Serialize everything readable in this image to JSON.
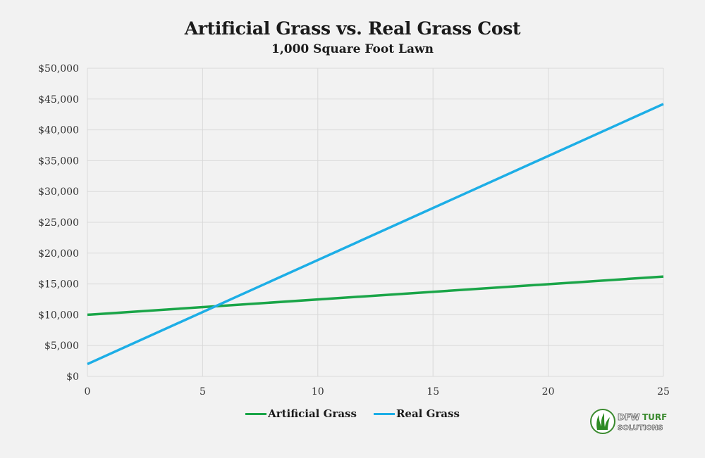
{
  "chart_data": {
    "type": "line",
    "title": "Artificial Grass vs. Real Grass Cost",
    "subtitle": "1,000 Square Foot Lawn",
    "xlabel": "",
    "ylabel": "",
    "xlim": [
      0,
      25
    ],
    "ylim": [
      0,
      50000
    ],
    "x_ticks": [
      "0",
      "5",
      "10",
      "15",
      "20",
      "25"
    ],
    "x_tick_values": [
      0,
      5,
      10,
      15,
      20,
      25
    ],
    "y_ticks": [
      "$0",
      "$5,000",
      "$10,000",
      "$15,000",
      "$20,000",
      "$25,000",
      "$30,000",
      "$35,000",
      "$40,000",
      "$45,000",
      "$50,000"
    ],
    "y_tick_values": [
      0,
      5000,
      10000,
      15000,
      20000,
      25000,
      30000,
      35000,
      40000,
      45000,
      50000
    ],
    "grid": true,
    "legend_position": "bottom",
    "series": [
      {
        "name": "Artificial Grass",
        "color": "#1aa548",
        "x": [
          0,
          25
        ],
        "values": [
          10000,
          16200
        ]
      },
      {
        "name": "Real Grass",
        "color": "#1daee6",
        "x": [
          0,
          25
        ],
        "values": [
          2000,
          44200
        ]
      }
    ]
  },
  "logo": {
    "line1_a": "DFW",
    "line1_b": "TURF",
    "line2": "SOLUTIONS"
  }
}
